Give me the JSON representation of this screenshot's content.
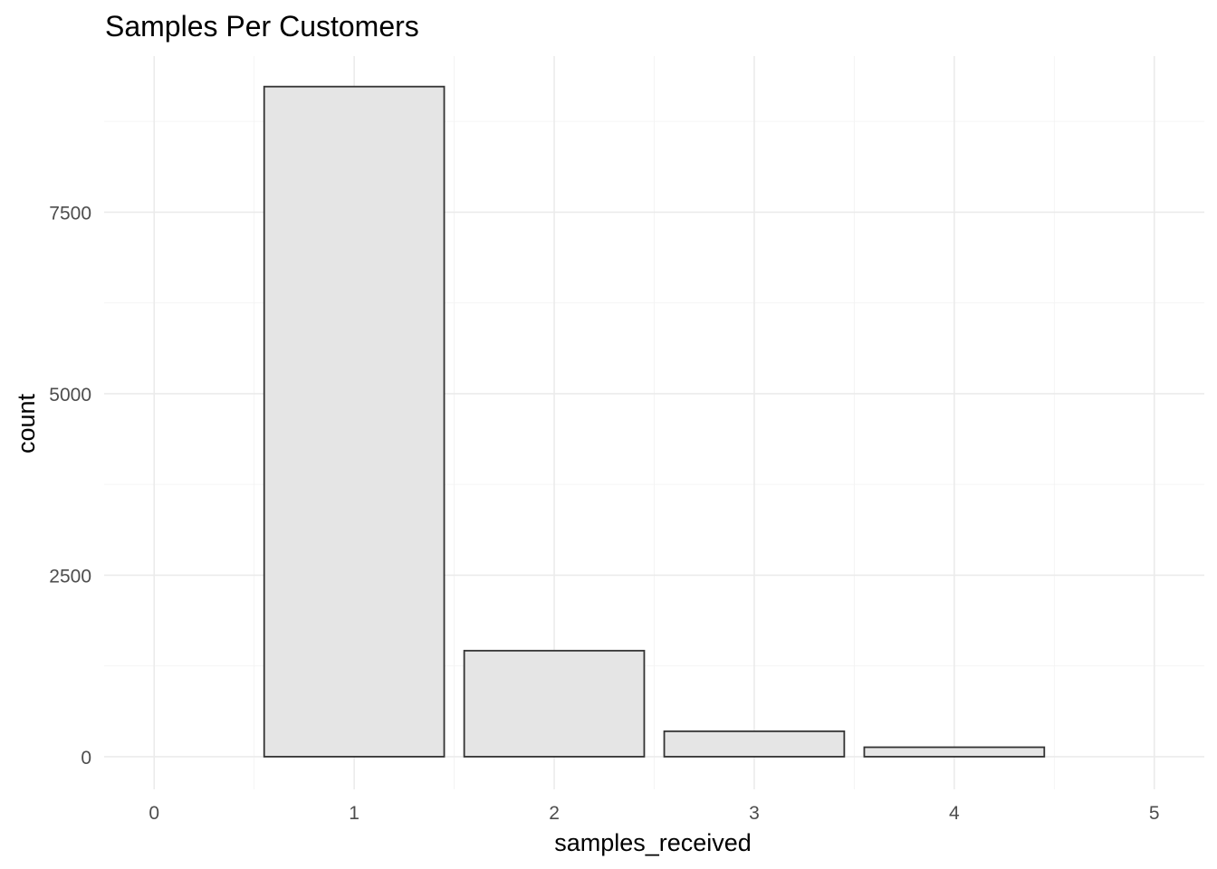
{
  "chart_data": {
    "type": "bar",
    "title": "Samples Per Customers",
    "xlabel": "samples_received",
    "ylabel": "count",
    "x": [
      1,
      2,
      3,
      4
    ],
    "values": [
      9230,
      1460,
      350,
      130
    ],
    "xlim": [
      -0.25,
      5.25
    ],
    "ylim": [
      -450,
      9650
    ],
    "x_ticks": [
      0,
      1,
      2,
      3,
      4,
      5
    ],
    "x_tick_labels": [
      "0",
      "1",
      "2",
      "3",
      "4",
      "5"
    ],
    "y_ticks": [
      0,
      2500,
      5000,
      7500
    ],
    "y_tick_labels": [
      "0",
      "2500",
      "5000",
      "7500"
    ],
    "bar_width": 0.9,
    "grid": true,
    "colors": {
      "bar_fill": "#e5e5e5",
      "bar_outline": "#333333"
    }
  }
}
